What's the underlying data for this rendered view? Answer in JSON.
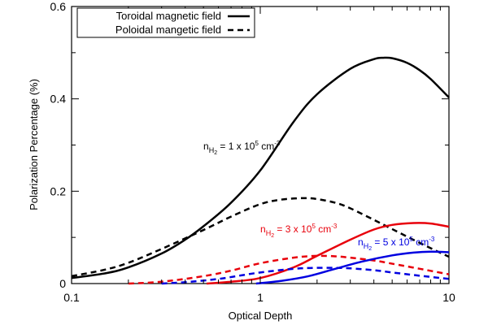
{
  "chart_data": {
    "type": "line",
    "title": "",
    "xlabel": "Optical Depth",
    "ylabel": "Polarization Percentage (%)",
    "xscale": "log",
    "xlim": [
      0.1,
      10
    ],
    "ylim": [
      0,
      0.6
    ],
    "xticks": [
      0.1,
      1,
      10
    ],
    "xtick_labels": [
      "0.1",
      "1",
      "10"
    ],
    "yticks": [
      0,
      0.2,
      0.4,
      0.6
    ],
    "ytick_labels": [
      "0",
      "0.2",
      "0.4",
      "0.6"
    ],
    "grid": false,
    "legend": {
      "position": "top-left",
      "entries": [
        {
          "label": "Toroidal magnetic field",
          "style": "solid"
        },
        {
          "label": "Poloidal mangetic field",
          "style": "dashed"
        }
      ]
    },
    "annotations": [
      {
        "base": "n",
        "sub": "H",
        "subsub": "2",
        "rest": " = 1 x 10",
        "exp": "5",
        "unit": " cm",
        "unit_exp": "-3",
        "color": "#000000"
      },
      {
        "base": "n",
        "sub": "H",
        "subsub": "2",
        "rest": " = 3 x 10",
        "exp": "5",
        "unit": " cm",
        "unit_exp": "-3",
        "color": "#e8000b"
      },
      {
        "base": "n",
        "sub": "H",
        "subsub": "2",
        "rest": " = 5 x 10",
        "exp": "5",
        "unit": " cm",
        "unit_exp": "-3",
        "color": "#0000e0"
      }
    ],
    "series": [
      {
        "name": "Toroidal, nH2 = 1e5 cm^-3",
        "color": "#000000",
        "style": "solid",
        "x": [
          0.1,
          0.15,
          0.2,
          0.3,
          0.4,
          0.5,
          0.7,
          1.0,
          1.5,
          2.0,
          3.0,
          4.0,
          4.5,
          5.0,
          6.0,
          7.0,
          8.0,
          10.0
        ],
        "y": [
          0.012,
          0.022,
          0.035,
          0.065,
          0.095,
          0.124,
          0.175,
          0.245,
          0.35,
          0.41,
          0.465,
          0.486,
          0.489,
          0.488,
          0.478,
          0.462,
          0.443,
          0.403
        ]
      },
      {
        "name": "Poloidal, nH2 = 1e5 cm^-3",
        "color": "#000000",
        "style": "dashed",
        "x": [
          0.1,
          0.15,
          0.2,
          0.3,
          0.5,
          0.7,
          1.0,
          1.3,
          1.7,
          2.0,
          2.5,
          3.0,
          4.0,
          5.0,
          7.0,
          10.0
        ],
        "y": [
          0.016,
          0.03,
          0.045,
          0.075,
          0.116,
          0.145,
          0.172,
          0.182,
          0.185,
          0.183,
          0.175,
          0.163,
          0.138,
          0.118,
          0.088,
          0.058
        ]
      },
      {
        "name": "Toroidal, nH2 = 3e5 cm^-3",
        "color": "#e8000b",
        "style": "solid",
        "x": [
          0.52,
          0.7,
          1.0,
          1.5,
          2.0,
          3.0,
          4.0,
          5.0,
          6.5,
          8.0,
          10.0
        ],
        "y": [
          0.0,
          0.004,
          0.012,
          0.035,
          0.06,
          0.095,
          0.117,
          0.127,
          0.131,
          0.13,
          0.123
        ]
      },
      {
        "name": "Poloidal, nH2 = 3e5 cm^-3",
        "color": "#e8000b",
        "style": "dashed",
        "x": [
          0.2,
          0.3,
          0.5,
          0.7,
          1.0,
          1.5,
          2.0,
          2.5,
          3.0,
          4.0,
          5.0,
          7.0,
          10.0
        ],
        "y": [
          0.0,
          0.004,
          0.016,
          0.028,
          0.044,
          0.056,
          0.06,
          0.059,
          0.056,
          0.05,
          0.043,
          0.032,
          0.02
        ]
      },
      {
        "name": "Toroidal, nH2 = 5e5 cm^-3",
        "color": "#0000e0",
        "style": "solid",
        "x": [
          0.95,
          1.3,
          1.8,
          2.5,
          3.5,
          5.0,
          6.5,
          8.0,
          10.0
        ],
        "y": [
          0.0,
          0.006,
          0.016,
          0.032,
          0.048,
          0.061,
          0.067,
          0.069,
          0.068
        ]
      },
      {
        "name": "Poloidal, nH2 = 5e5 cm^-3",
        "color": "#0000e0",
        "style": "dashed",
        "x": [
          0.3,
          0.4,
          0.6,
          0.8,
          1.0,
          1.5,
          2.0,
          2.5,
          3.0,
          4.0,
          5.0,
          7.0,
          10.0
        ],
        "y": [
          0.0,
          0.003,
          0.01,
          0.018,
          0.024,
          0.032,
          0.034,
          0.034,
          0.033,
          0.029,
          0.024,
          0.017,
          0.01
        ]
      }
    ]
  }
}
